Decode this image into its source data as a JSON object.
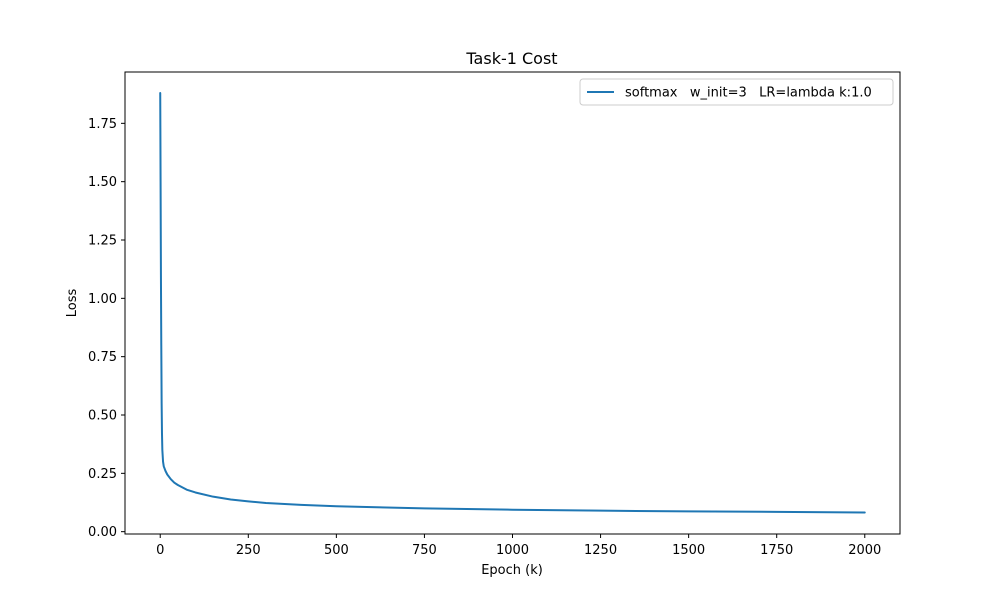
{
  "chart_data": {
    "type": "line",
    "title": "Task-1 Cost",
    "xlabel": "Epoch (k)",
    "ylabel": "Loss",
    "xlim": [
      -100,
      2100
    ],
    "ylim": [
      -0.01,
      1.97
    ],
    "xticks": [
      0,
      250,
      500,
      750,
      1000,
      1250,
      1500,
      1750,
      2000
    ],
    "xtick_labels": [
      "0",
      "250",
      "500",
      "750",
      "1000",
      "1250",
      "1500",
      "1750",
      "2000"
    ],
    "yticks": [
      0.0,
      0.25,
      0.5,
      0.75,
      1.0,
      1.25,
      1.5,
      1.75
    ],
    "ytick_labels": [
      "0.00",
      "0.25",
      "0.50",
      "0.75",
      "1.00",
      "1.25",
      "1.50",
      "1.75"
    ],
    "grid": false,
    "legend_position": "top-right",
    "series": [
      {
        "name": "softmax   w_init=3   LR=lambda k:1.0",
        "color": "#1f77b4",
        "x": [
          0,
          1,
          2,
          3,
          4,
          5,
          6,
          8,
          10,
          15,
          20,
          30,
          40,
          50,
          75,
          100,
          150,
          200,
          250,
          300,
          400,
          500,
          600,
          750,
          1000,
          1250,
          1500,
          1750,
          2000
        ],
        "y": [
          1.88,
          1.5,
          1.1,
          0.8,
          0.55,
          0.42,
          0.35,
          0.3,
          0.28,
          0.26,
          0.245,
          0.225,
          0.21,
          0.2,
          0.18,
          0.168,
          0.15,
          0.138,
          0.13,
          0.123,
          0.115,
          0.109,
          0.105,
          0.1,
          0.094,
          0.09,
          0.087,
          0.085,
          0.082
        ]
      }
    ]
  }
}
